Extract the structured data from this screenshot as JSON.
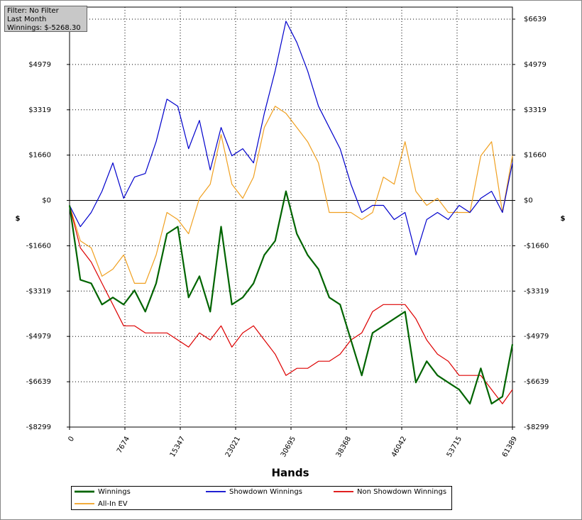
{
  "chart_data": {
    "type": "line",
    "annotations": [
      "Filter: No Filter",
      "Last Month",
      "Winnings: $-5268.30"
    ],
    "x_label": "Hands",
    "y_label": "$",
    "y2_label": "$",
    "x": [
      0,
      1500,
      3000,
      4500,
      6000,
      7500,
      9000,
      10500,
      12000,
      13500,
      15000,
      16500,
      18000,
      19500,
      21000,
      22500,
      24000,
      25500,
      27000,
      28500,
      30000,
      31500,
      33000,
      34500,
      36000,
      37500,
      39000,
      40500,
      42000,
      43500,
      45000,
      46500,
      48000,
      49500,
      51000,
      52500,
      54000,
      55500,
      57000,
      58500,
      60000,
      61389
    ],
    "series": [
      {
        "name": "Winnings",
        "color": "#006400",
        "width": 2.2,
        "values": [
          -182,
          -2905,
          -3035,
          -3813,
          -3554,
          -3813,
          -3294,
          -4073,
          -3035,
          -1219,
          -960,
          -3554,
          -2776,
          -4073,
          -960,
          -3813,
          -3554,
          -3035,
          -1997,
          -1479,
          337,
          -1219,
          -1997,
          -2516,
          -3554,
          -3813,
          -5110,
          -6407,
          -4851,
          -4591,
          -4332,
          -4073,
          -6667,
          -5888,
          -6407,
          -6667,
          -6926,
          -7445,
          -6148,
          -7445,
          -7185,
          -5268
        ]
      },
      {
        "name": "Showdown Winnings",
        "color": "#0000cc",
        "width": 1.2,
        "values": [
          -182,
          -960,
          -441,
          337,
          1375,
          78,
          856,
          986,
          2153,
          3709,
          3450,
          1894,
          2931,
          1116,
          2672,
          1634,
          1894,
          1375,
          3191,
          4747,
          6563,
          5785,
          4747,
          3450,
          2672,
          1894,
          597,
          -441,
          -182,
          -182,
          -700,
          -441,
          -1997,
          -700,
          -441,
          -700,
          -182,
          -441,
          78,
          337,
          -441,
          1375
        ]
      },
      {
        "name": "Non Showdown Winnings",
        "color": "#dd0000",
        "width": 1.2,
        "values": [
          -182,
          -1738,
          -2257,
          -3035,
          -3813,
          -4591,
          -4591,
          -4851,
          -4851,
          -4851,
          -5110,
          -5370,
          -4851,
          -5110,
          -4591,
          -5370,
          -4851,
          -4591,
          -5110,
          -5629,
          -6407,
          -6148,
          -6148,
          -5888,
          -5888,
          -5629,
          -5110,
          -4851,
          -4073,
          -3813,
          -3813,
          -3813,
          -4332,
          -5110,
          -5629,
          -5888,
          -6407,
          -6407,
          -6407,
          -6926,
          -7445,
          -6926
        ]
      },
      {
        "name": "All-In EV",
        "color": "#f0a020",
        "width": 1.2,
        "values": [
          -182,
          -1479,
          -1738,
          -2776,
          -2516,
          -1997,
          -3035,
          -3035,
          -1997,
          -441,
          -700,
          -1219,
          78,
          597,
          2412,
          597,
          78,
          856,
          2672,
          3450,
          3191,
          2672,
          2153,
          1375,
          -441,
          -441,
          -441,
          -700,
          -441,
          856,
          597,
          2153,
          337,
          -182,
          78,
          -441,
          -441,
          -441,
          1634,
          2153,
          -441,
          1634
        ]
      }
    ],
    "xlim": [
      0,
      61389
    ],
    "xticks": [
      0,
      7674,
      15347,
      23021,
      30695,
      38368,
      46042,
      53715,
      61389
    ],
    "ylim": [
      -8299,
      7080
    ],
    "yticks": [
      {
        "value": 6639,
        "label": "$6639"
      },
      {
        "value": 4979,
        "label": "$4979"
      },
      {
        "value": 3319,
        "label": "$3319"
      },
      {
        "value": 1660,
        "label": "$1660"
      },
      {
        "value": 0,
        "label": "$0"
      },
      {
        "value": -1660,
        "label": "-$1660"
      },
      {
        "value": -3319,
        "label": "-$3319"
      },
      {
        "value": -4979,
        "label": "-$4979"
      },
      {
        "value": -6639,
        "label": "-$6639"
      },
      {
        "value": -8299,
        "label": "-$8299"
      }
    ],
    "grid": true,
    "legend": "bottom"
  }
}
